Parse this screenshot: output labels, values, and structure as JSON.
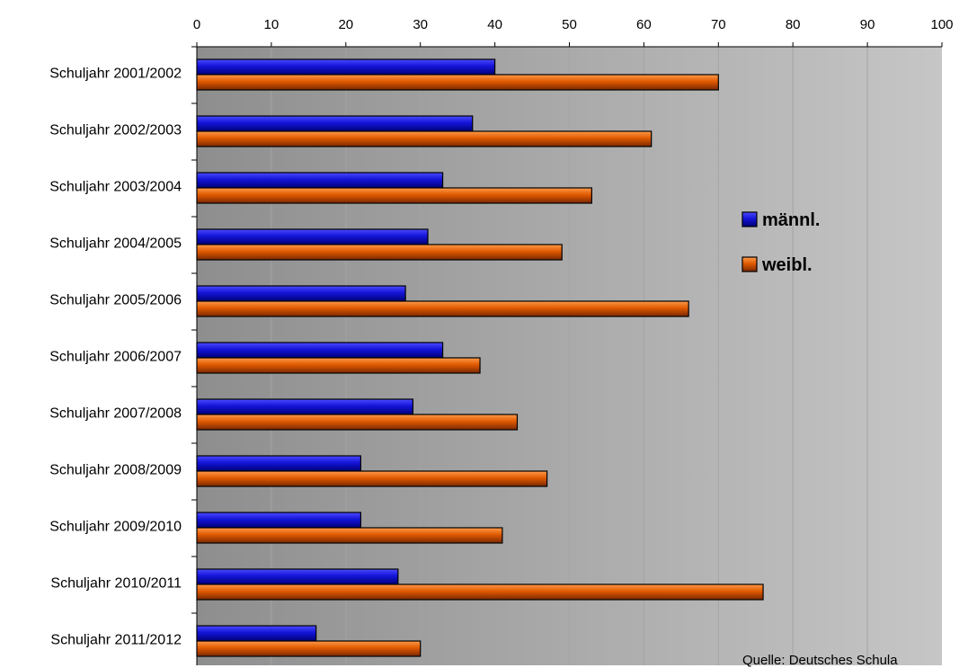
{
  "chart_data": {
    "type": "bar",
    "orientation": "horizontal",
    "categories": [
      "Schuljahr 2001/2002",
      "Schuljahr 2002/2003",
      "Schuljahr 2003/2004",
      "Schuljahr 2004/2005",
      "Schuljahr 2005/2006",
      "Schuljahr 2006/2007",
      "Schuljahr 2007/2008",
      "Schuljahr 2008/2009",
      "Schuljahr 2009/2010",
      "Schuljahr 2010/2011",
      "Schuljahr 2011/2012"
    ],
    "series": [
      {
        "name": "männl.",
        "color": "#1010c8",
        "values": [
          40,
          37,
          33,
          31,
          28,
          33,
          29,
          22,
          22,
          27,
          16
        ]
      },
      {
        "name": "weibl.",
        "color": "#e05800",
        "values": [
          70,
          61,
          53,
          49,
          66,
          38,
          43,
          47,
          41,
          76,
          30
        ]
      }
    ],
    "xlim": [
      0,
      100
    ],
    "xticks": [
      "0",
      "10",
      "20",
      "30",
      "40",
      "50",
      "60",
      "70",
      "80",
      "90",
      "100"
    ],
    "x_axis_position": "top",
    "grid": true,
    "legend_position": "right",
    "title": "",
    "xlabel": "",
    "ylabel": "",
    "source_note": "Quelle: Deutsches Schula"
  }
}
